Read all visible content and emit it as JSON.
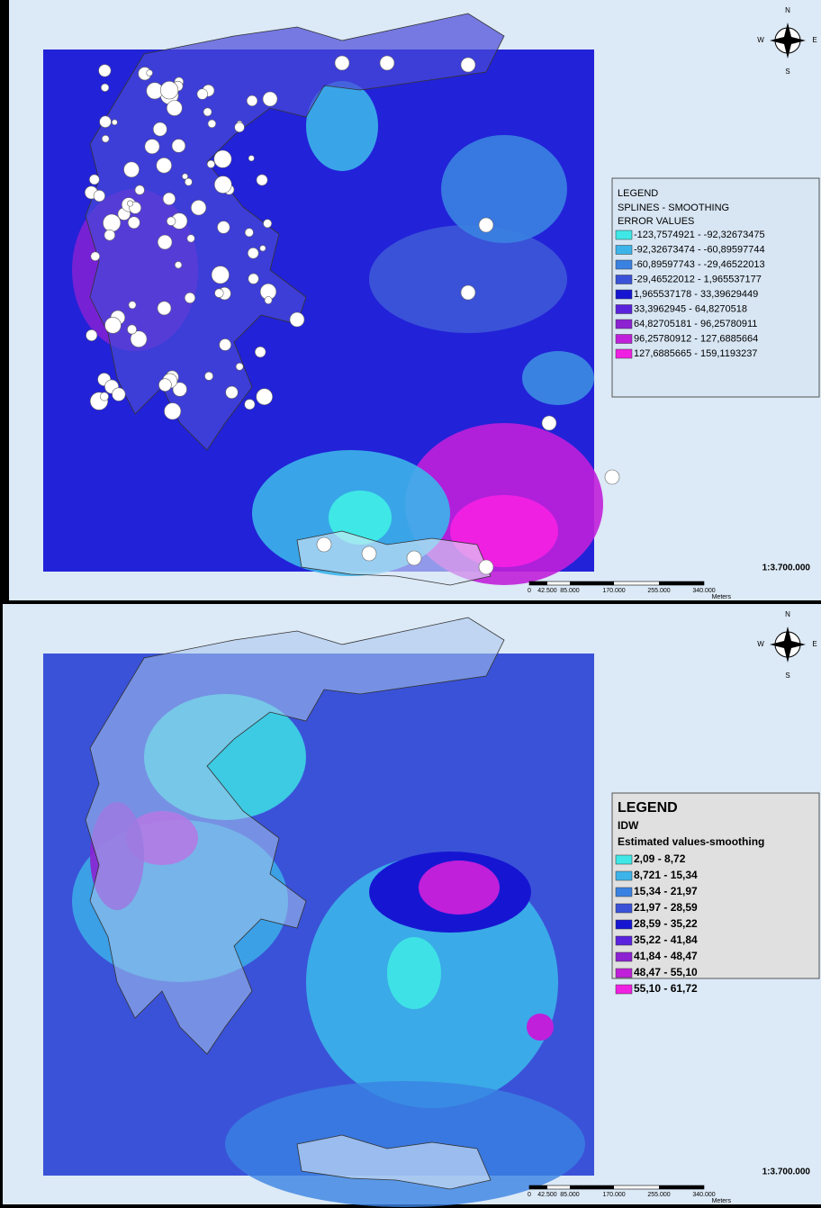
{
  "maps": [
    {
      "compass": {
        "n": "N",
        "s": "S",
        "w": "W",
        "e": "E"
      },
      "legend": {
        "title": "LEGEND",
        "method": "SPLINES - SMOOTHING",
        "subtitle": "ERROR VALUES",
        "classes": [
          {
            "label": "-123,7574921 - -92,32673475",
            "color": "#3fe8e6"
          },
          {
            "label": "-92,32673474 - -60,89597744",
            "color": "#3cb4ea"
          },
          {
            "label": "-60,89597743 - -29,46522013",
            "color": "#3a82e2"
          },
          {
            "label": "-29,46522012 - 1,965537177",
            "color": "#3a52d8"
          },
          {
            "label": "1,965537178 - 33,39629449",
            "color": "#1616d2"
          },
          {
            "label": "33,3962945 - 64,8270518",
            "color": "#5a22dc"
          },
          {
            "label": "64,82705181 - 96,25780911",
            "color": "#8c22d2"
          },
          {
            "label": "96,25780912 - 127,6885664",
            "color": "#c020da"
          },
          {
            "label": "127,6885665 - 159,1193237",
            "color": "#f020e2"
          }
        ]
      },
      "scale": {
        "ratio": "1:3.700.000",
        "ticks": [
          "0",
          "42.500",
          "85.000",
          "170.000",
          "255.000",
          "340.000"
        ],
        "unit": "Meters"
      }
    },
    {
      "compass": {
        "n": "N",
        "s": "S",
        "w": "W",
        "e": "E"
      },
      "legend": {
        "title": "LEGEND",
        "method": "IDW",
        "subtitle": "Estimated values-smoothing",
        "classes": [
          {
            "label": "2,09 - 8,72",
            "color": "#3fe8e6"
          },
          {
            "label": "8,721 - 15,34",
            "color": "#3cb4ea"
          },
          {
            "label": "15,34 - 21,97",
            "color": "#3a82e2"
          },
          {
            "label": "21,97 - 28,59",
            "color": "#3a52d8"
          },
          {
            "label": "28,59 - 35,22",
            "color": "#1616d2"
          },
          {
            "label": "35,22 - 41,84",
            "color": "#5a22dc"
          },
          {
            "label": "41,84 - 48,47",
            "color": "#8c22d2"
          },
          {
            "label": "48,47 - 55,10",
            "color": "#c020da"
          },
          {
            "label": "55,10 - 61,72",
            "color": "#f020e2"
          }
        ]
      },
      "scale": {
        "ratio": "1:3.700.000",
        "ticks": [
          "0",
          "42.500",
          "85.000",
          "170.000",
          "255.000",
          "340.000"
        ],
        "unit": "Meters"
      }
    }
  ]
}
